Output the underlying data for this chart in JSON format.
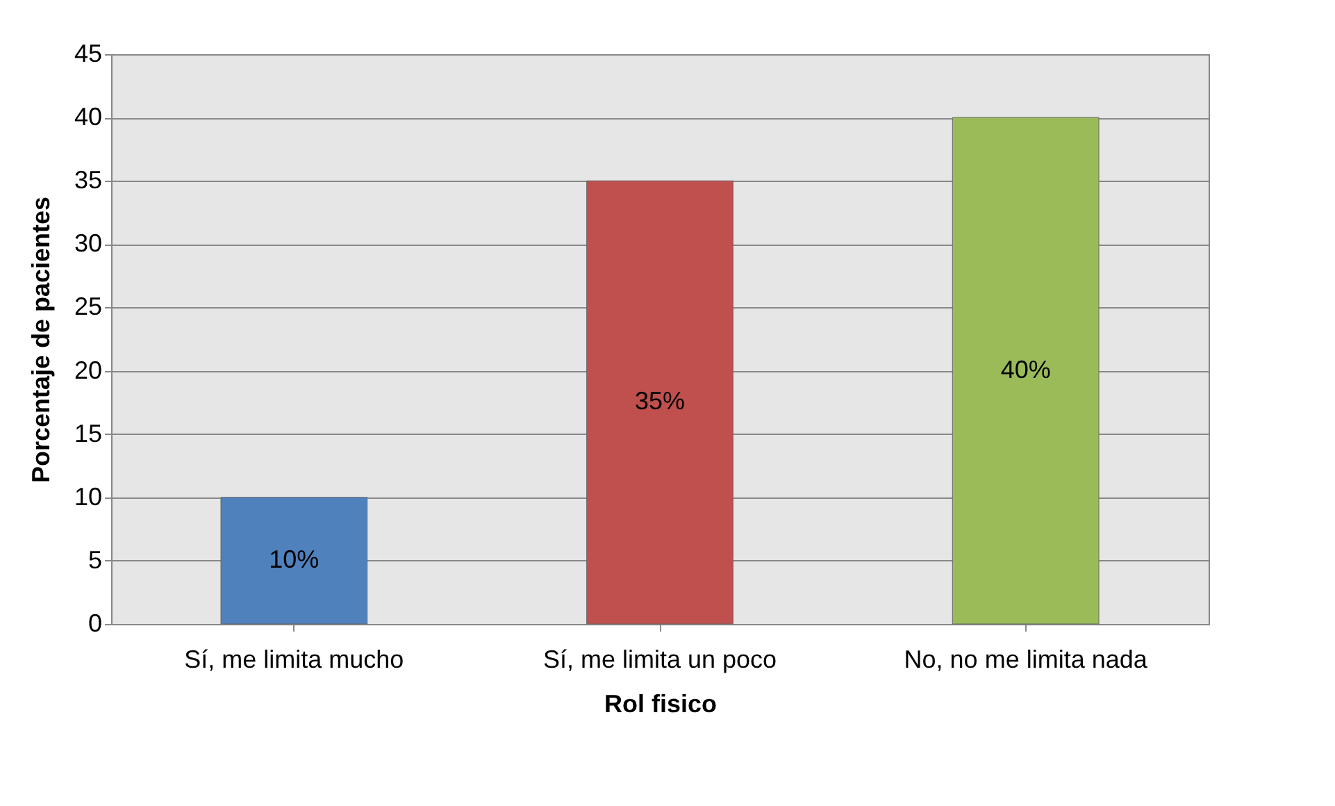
{
  "chart_data": {
    "type": "bar",
    "xlabel": "Rol fisico",
    "ylabel": "Porcentaje de pacientes",
    "categories": [
      "Sí, me limita mucho",
      "Sí, me limita un poco",
      "No, no me limita nada"
    ],
    "values": [
      10,
      35,
      40
    ],
    "colors": [
      "#4f81bd",
      "#c0504d",
      "#9bbb59"
    ],
    "value_labels": [
      "10%",
      "35%",
      "40%"
    ],
    "ylim": [
      0,
      45
    ],
    "yticks": [
      0,
      5,
      10,
      15,
      20,
      25,
      30,
      35,
      40,
      45
    ],
    "grid": "y"
  }
}
